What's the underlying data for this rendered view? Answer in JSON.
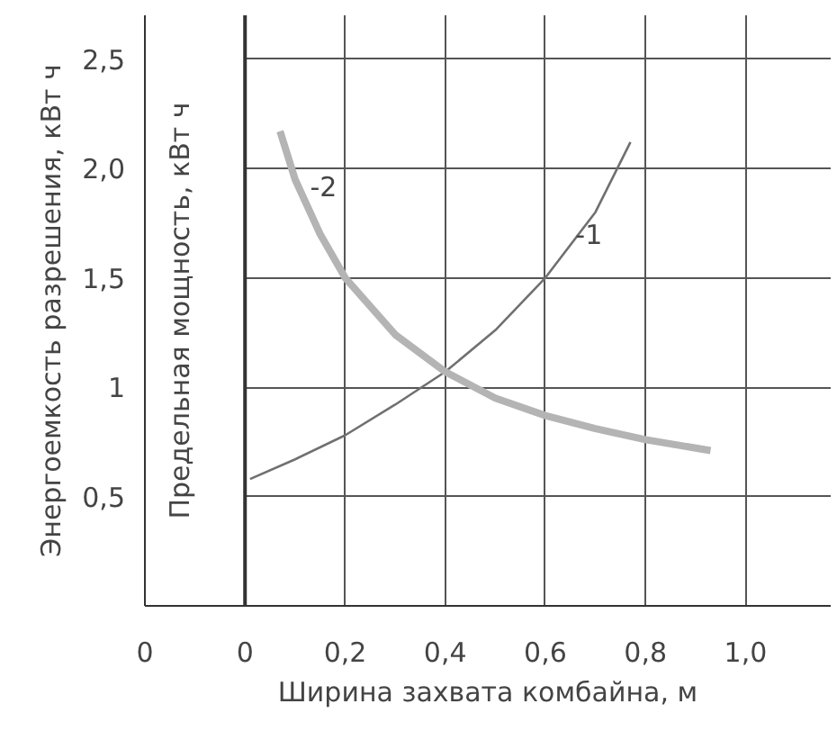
{
  "chart_data": {
    "type": "line",
    "xlabel": "Ширина захвата комбайна, м",
    "ylabel": "Энергоемкость разрешения, кВт ч",
    "y2label": "Предельная мощность, кВт ч",
    "series": [
      {
        "color": "#707070",
        "x": [
          0.01,
          0.1,
          0.2,
          0.3,
          0.4,
          0.5,
          0.6,
          0.7,
          0.77
        ],
        "values": [
          0.58,
          0.67,
          0.78,
          0.92,
          1.07,
          1.26,
          1.5,
          1.8,
          2.12
        ]
      },
      {
        "color": "#b4b4b4",
        "x": [
          0.07,
          0.1,
          0.15,
          0.2,
          0.3,
          0.4,
          0.5,
          0.6,
          0.7,
          0.8,
          0.93
        ],
        "values": [
          2.17,
          1.95,
          1.7,
          1.5,
          1.24,
          1.07,
          0.95,
          0.87,
          0.81,
          0.76,
          0.71
        ]
      }
    ],
    "annotations": [
      {
        "text": "-1",
        "x": 0.66,
        "y": 1.7
      },
      {
        "text": "-2",
        "x": 0.13,
        "y": 1.92
      }
    ],
    "xlim": [
      -0.2,
      1.17
    ],
    "ylim": [
      0,
      2.7
    ],
    "xticks": [
      {
        "value": -0.2,
        "label": "0"
      },
      0,
      {
        "value": 0.2,
        "label": "0,2"
      },
      {
        "value": 0.4,
        "label": "0,4"
      },
      {
        "value": 0.6,
        "label": "0,6"
      },
      {
        "value": 0.8,
        "label": "0,8"
      },
      {
        "value": 1.0,
        "label": "1,0"
      }
    ],
    "yticks": [
      {
        "value": 0.5,
        "label": "0,5"
      },
      1,
      {
        "value": 1.5,
        "label": "1,5"
      },
      {
        "value": 2.0,
        "label": "2,0"
      },
      {
        "value": 2.5,
        "label": "2,5"
      }
    ],
    "ref_lines": [
      {
        "axis": "x",
        "value": 0,
        "color": "#333333"
      }
    ],
    "grid": true,
    "marker": "none",
    "line_style": "solid"
  }
}
